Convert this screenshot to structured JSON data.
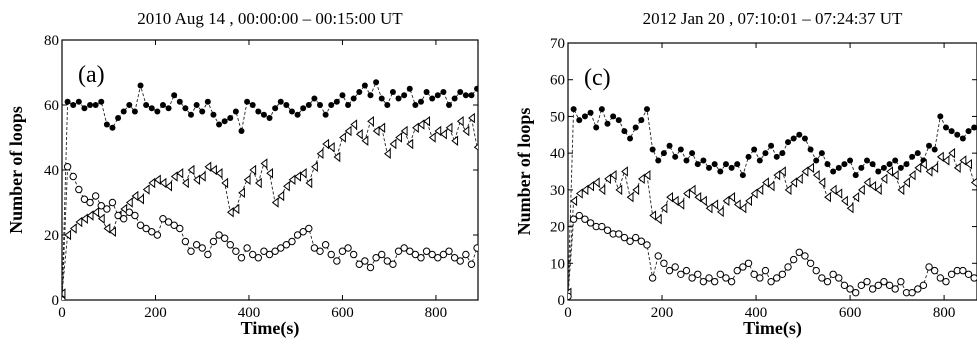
{
  "chart_data": [
    {
      "type": "scatter",
      "title": "2010 Aug 14 , 00:00:00 – 00:15:00 UT",
      "panel_label": "(a)",
      "xlabel": "Time(s)",
      "ylabel": "Number of loops",
      "xlim": [
        0,
        890
      ],
      "ylim": [
        0,
        80
      ],
      "xticks": [
        0,
        200,
        400,
        600,
        800
      ],
      "yticks": [
        0,
        20,
        40,
        60,
        80
      ],
      "grid": false,
      "series": [
        {
          "marker": "filled-circle",
          "x": [
            0,
            12,
            24,
            36,
            48,
            60,
            72,
            84,
            96,
            108,
            120,
            132,
            144,
            156,
            168,
            180,
            192,
            204,
            216,
            228,
            240,
            252,
            264,
            276,
            288,
            300,
            312,
            324,
            336,
            348,
            360,
            372,
            384,
            396,
            408,
            420,
            432,
            444,
            456,
            468,
            480,
            492,
            504,
            516,
            528,
            540,
            552,
            564,
            576,
            588,
            600,
            612,
            624,
            636,
            648,
            660,
            672,
            684,
            696,
            708,
            720,
            732,
            744,
            756,
            768,
            780,
            792,
            804,
            816,
            828,
            840,
            852,
            864,
            876,
            888
          ],
          "y": [
            0,
            61,
            60,
            61,
            59,
            60,
            60,
            61,
            54,
            53,
            56,
            58,
            60,
            58,
            66,
            60,
            59,
            58,
            60,
            59,
            63,
            61,
            59,
            57,
            60,
            58,
            61,
            57,
            54,
            55,
            56,
            58,
            52,
            61,
            60,
            58,
            57,
            56,
            59,
            61,
            60,
            58,
            57,
            59,
            60,
            62,
            60,
            57,
            60,
            61,
            63,
            60,
            62,
            64,
            66,
            63,
            67,
            62,
            60,
            64,
            62,
            63,
            65,
            60,
            61,
            64,
            62,
            63,
            64,
            60,
            62,
            64,
            63,
            63,
            65
          ]
        },
        {
          "marker": "open-triangle",
          "x": [
            0,
            12,
            24,
            36,
            48,
            60,
            72,
            84,
            96,
            108,
            120,
            132,
            144,
            156,
            168,
            180,
            192,
            204,
            216,
            228,
            240,
            252,
            264,
            276,
            288,
            300,
            312,
            324,
            336,
            348,
            360,
            372,
            384,
            396,
            408,
            420,
            432,
            444,
            456,
            468,
            480,
            492,
            504,
            516,
            528,
            540,
            552,
            564,
            576,
            588,
            600,
            612,
            624,
            636,
            648,
            660,
            672,
            684,
            696,
            708,
            720,
            732,
            744,
            756,
            768,
            780,
            792,
            804,
            816,
            828,
            840,
            852,
            864,
            876,
            888
          ],
          "y": [
            2,
            20,
            22,
            24,
            25,
            26,
            27,
            25,
            22,
            21,
            26,
            28,
            30,
            32,
            31,
            34,
            36,
            37,
            36,
            35,
            38,
            39,
            36,
            40,
            37,
            38,
            41,
            40,
            39,
            36,
            27,
            28,
            33,
            37,
            40,
            36,
            42,
            39,
            30,
            32,
            35,
            37,
            38,
            39,
            36,
            41,
            45,
            48,
            47,
            44,
            50,
            52,
            54,
            51,
            49,
            55,
            52,
            53,
            45,
            48,
            50,
            52,
            48,
            53,
            54,
            55,
            50,
            52,
            51,
            53,
            49,
            55,
            52,
            56,
            47
          ]
        },
        {
          "marker": "open-circle",
          "x": [
            0,
            12,
            24,
            36,
            48,
            60,
            72,
            84,
            96,
            108,
            120,
            132,
            144,
            156,
            168,
            180,
            192,
            204,
            216,
            228,
            240,
            252,
            264,
            276,
            288,
            300,
            312,
            324,
            336,
            348,
            360,
            372,
            384,
            396,
            408,
            420,
            432,
            444,
            456,
            468,
            480,
            492,
            504,
            516,
            528,
            540,
            552,
            564,
            576,
            588,
            600,
            612,
            624,
            636,
            648,
            660,
            672,
            684,
            696,
            708,
            720,
            732,
            744,
            756,
            768,
            780,
            792,
            804,
            816,
            828,
            840,
            852,
            864,
            876,
            888
          ],
          "y": [
            0,
            41,
            38,
            34,
            31,
            30,
            32,
            29,
            28,
            30,
            26,
            25,
            27,
            26,
            23,
            22,
            21,
            20,
            25,
            24,
            23,
            22,
            18,
            15,
            17,
            16,
            14,
            18,
            20,
            19,
            17,
            15,
            13,
            16,
            14,
            13,
            15,
            14,
            15,
            16,
            17,
            18,
            20,
            21,
            22,
            16,
            15,
            17,
            14,
            12,
            15,
            16,
            14,
            11,
            12,
            10,
            13,
            14,
            12,
            11,
            15,
            16,
            15,
            14,
            13,
            15,
            14,
            13,
            14,
            15,
            13,
            12,
            14,
            11,
            16
          ]
        }
      ]
    },
    {
      "type": "scatter",
      "title": "2012 Jan 20 , 07:10:01 – 07:24:37 UT",
      "panel_label": "(c)",
      "xlabel": "Time(s)",
      "ylabel": "Number of loops",
      "xlim": [
        0,
        870
      ],
      "ylim": [
        0,
        70
      ],
      "xticks": [
        0,
        200,
        400,
        600,
        800
      ],
      "yticks": [
        0,
        10,
        20,
        30,
        40,
        50,
        60,
        70
      ],
      "grid": false,
      "series": [
        {
          "marker": "filled-circle",
          "x": [
            0,
            12,
            24,
            36,
            48,
            60,
            72,
            84,
            96,
            108,
            120,
            132,
            144,
            156,
            168,
            180,
            192,
            204,
            216,
            228,
            240,
            252,
            264,
            276,
            288,
            300,
            312,
            324,
            336,
            348,
            360,
            372,
            384,
            396,
            408,
            420,
            432,
            444,
            456,
            468,
            480,
            492,
            504,
            516,
            528,
            540,
            552,
            564,
            576,
            588,
            600,
            612,
            624,
            636,
            648,
            660,
            672,
            684,
            696,
            708,
            720,
            732,
            744,
            756,
            768,
            780,
            792,
            804,
            816,
            828,
            840,
            852,
            864
          ],
          "y": [
            2,
            52,
            49,
            50,
            51,
            47,
            52,
            48,
            50,
            49,
            46,
            44,
            47,
            49,
            52,
            41,
            38,
            40,
            42,
            39,
            41,
            38,
            40,
            37,
            38,
            36,
            37,
            35,
            37,
            36,
            37,
            34,
            39,
            41,
            38,
            40,
            42,
            39,
            40,
            43,
            44,
            45,
            44,
            41,
            38,
            40,
            37,
            35,
            36,
            37,
            38,
            34,
            36,
            38,
            37,
            35,
            36,
            37,
            38,
            36,
            37,
            39,
            40,
            38,
            42,
            41,
            50,
            47,
            46,
            45,
            44,
            46,
            47
          ]
        },
        {
          "marker": "open-triangle",
          "x": [
            0,
            12,
            24,
            36,
            48,
            60,
            72,
            84,
            96,
            108,
            120,
            132,
            144,
            156,
            168,
            180,
            192,
            204,
            216,
            228,
            240,
            252,
            264,
            276,
            288,
            300,
            312,
            324,
            336,
            348,
            360,
            372,
            384,
            396,
            408,
            420,
            432,
            444,
            456,
            468,
            480,
            492,
            504,
            516,
            528,
            540,
            552,
            564,
            576,
            588,
            600,
            612,
            624,
            636,
            648,
            660,
            672,
            684,
            696,
            708,
            720,
            732,
            744,
            756,
            768,
            780,
            792,
            804,
            816,
            828,
            840,
            852,
            864
          ],
          "y": [
            2,
            27,
            29,
            30,
            31,
            32,
            30,
            33,
            34,
            30,
            35,
            28,
            30,
            33,
            34,
            23,
            22,
            25,
            28,
            27,
            26,
            29,
            30,
            28,
            27,
            25,
            26,
            24,
            27,
            28,
            26,
            25,
            27,
            29,
            30,
            32,
            31,
            34,
            35,
            30,
            32,
            33,
            35,
            36,
            34,
            32,
            28,
            30,
            29,
            27,
            25,
            28,
            30,
            32,
            31,
            30,
            33,
            35,
            34,
            30,
            32,
            34,
            36,
            37,
            35,
            36,
            39,
            38,
            40,
            36,
            38,
            37,
            32
          ]
        },
        {
          "marker": "open-circle",
          "x": [
            0,
            12,
            24,
            36,
            48,
            60,
            72,
            84,
            96,
            108,
            120,
            132,
            144,
            156,
            168,
            180,
            192,
            204,
            216,
            228,
            240,
            252,
            264,
            276,
            288,
            300,
            312,
            324,
            336,
            348,
            360,
            372,
            384,
            396,
            408,
            420,
            432,
            444,
            456,
            468,
            480,
            492,
            504,
            516,
            528,
            540,
            552,
            564,
            576,
            588,
            600,
            612,
            624,
            636,
            648,
            660,
            672,
            684,
            696,
            708,
            720,
            732,
            744,
            756,
            768,
            780,
            792,
            804,
            816,
            828,
            840,
            852,
            864
          ],
          "y": [
            1,
            22,
            23,
            22,
            21,
            20,
            20,
            19,
            18,
            18,
            17,
            16,
            17,
            16,
            15,
            6,
            12,
            10,
            8,
            9,
            7,
            8,
            6,
            7,
            5,
            6,
            5,
            7,
            6,
            5,
            8,
            9,
            10,
            7,
            6,
            8,
            5,
            6,
            7,
            9,
            11,
            13,
            12,
            10,
            8,
            6,
            5,
            7,
            6,
            4,
            3,
            2,
            4,
            5,
            3,
            4,
            5,
            4,
            3,
            5,
            2,
            2,
            3,
            4,
            9,
            8,
            6,
            5,
            7,
            8,
            8,
            7,
            6
          ]
        }
      ]
    }
  ]
}
